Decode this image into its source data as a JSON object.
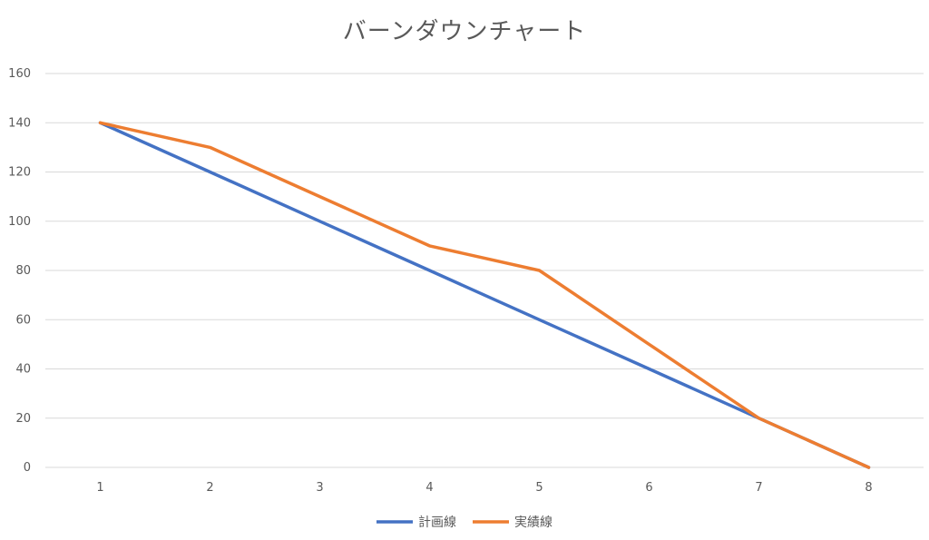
{
  "chart_data": {
    "type": "line",
    "title": "バーンダウンチャート",
    "x": [
      1,
      2,
      3,
      4,
      5,
      6,
      7,
      8
    ],
    "ylim": [
      0,
      160
    ],
    "yticks": [
      0,
      20,
      40,
      60,
      80,
      100,
      120,
      140,
      160
    ],
    "grid": true,
    "legend_position": "bottom",
    "series": [
      {
        "name": "計画線",
        "color": "#4472C4",
        "values": [
          140,
          120,
          100,
          80,
          60,
          40,
          20,
          0
        ]
      },
      {
        "name": "実績線",
        "color": "#ED7D31",
        "values": [
          140,
          130,
          110,
          90,
          80,
          50,
          20,
          0
        ]
      }
    ]
  }
}
